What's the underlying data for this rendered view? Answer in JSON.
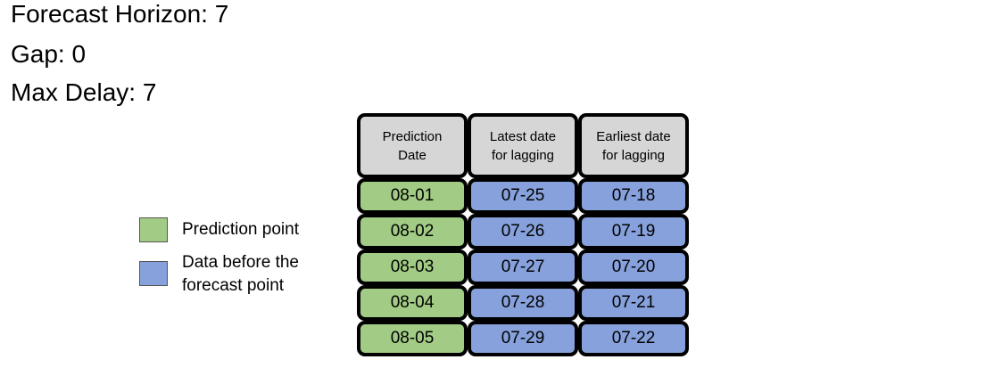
{
  "params": {
    "forecast_horizon": "Forecast Horizon: 7",
    "gap": "Gap: 0",
    "max_delay": "Max Delay: 7"
  },
  "legend": {
    "items": [
      {
        "label": "Prediction point",
        "color": "#a2cc85"
      },
      {
        "label": "Data before the forecast point",
        "color": "#86a1db"
      }
    ]
  },
  "table": {
    "headers": [
      "Prediction Date",
      "Latest date for lagging",
      "Earliest date for lagging"
    ],
    "rows": [
      {
        "prediction": "08-01",
        "latest": "07-25",
        "earliest": "07-18"
      },
      {
        "prediction": "08-02",
        "latest": "07-26",
        "earliest": "07-19"
      },
      {
        "prediction": "08-03",
        "latest": "07-27",
        "earliest": "07-20"
      },
      {
        "prediction": "08-04",
        "latest": "07-28",
        "earliest": "07-21"
      },
      {
        "prediction": "08-05",
        "latest": "07-29",
        "earliest": "07-22"
      }
    ],
    "colors": {
      "header_fill": "#d6d6d6",
      "prediction_fill": "#a2cc85",
      "lag_fill": "#86a1db",
      "border": "#000000"
    }
  }
}
